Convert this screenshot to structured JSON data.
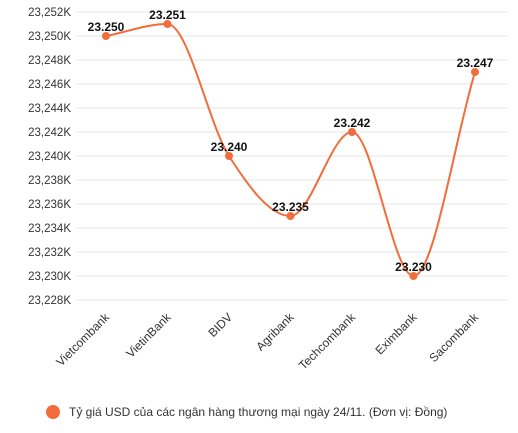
{
  "colors": {
    "series": "#f26c3c",
    "grid": "#e4e4e4",
    "text": "#333333"
  },
  "chart_data": {
    "type": "line",
    "categories": [
      "Vietcombank",
      "VietinBank",
      "BIDV",
      "Agribank",
      "Techcombank",
      "Eximbank",
      "Sacombank"
    ],
    "series": [
      {
        "name": "Tỷ giá USD của các ngân hàng thương mại ngày 24/11. (Đơn vị: Đồng)",
        "values": [
          23250,
          23251,
          23240,
          23235,
          23242,
          23230,
          23247
        ],
        "value_labels": [
          "23.250",
          "23.251",
          "23.240",
          "23.235",
          "23.242",
          "23.230",
          "23.247"
        ]
      }
    ],
    "y_ticks": [
      23252,
      23250,
      23248,
      23246,
      23244,
      23242,
      23240,
      23238,
      23236,
      23234,
      23232,
      23230,
      23228
    ],
    "y_tick_labels": [
      "23,252K",
      "23,250K",
      "23,248K",
      "23,246K",
      "23,244K",
      "23,242K",
      "23,240K",
      "23,238K",
      "23,236K",
      "23,234K",
      "23,232K",
      "23,230K",
      "23,228K"
    ],
    "ylim": [
      23227,
      23252
    ],
    "grid": true,
    "smooth": true,
    "legend_position": "bottom-left"
  },
  "legend": {
    "label": "Tỷ giá USD của các ngân hàng thương mại ngày 24/11. (Đơn vị: Đồng)"
  }
}
